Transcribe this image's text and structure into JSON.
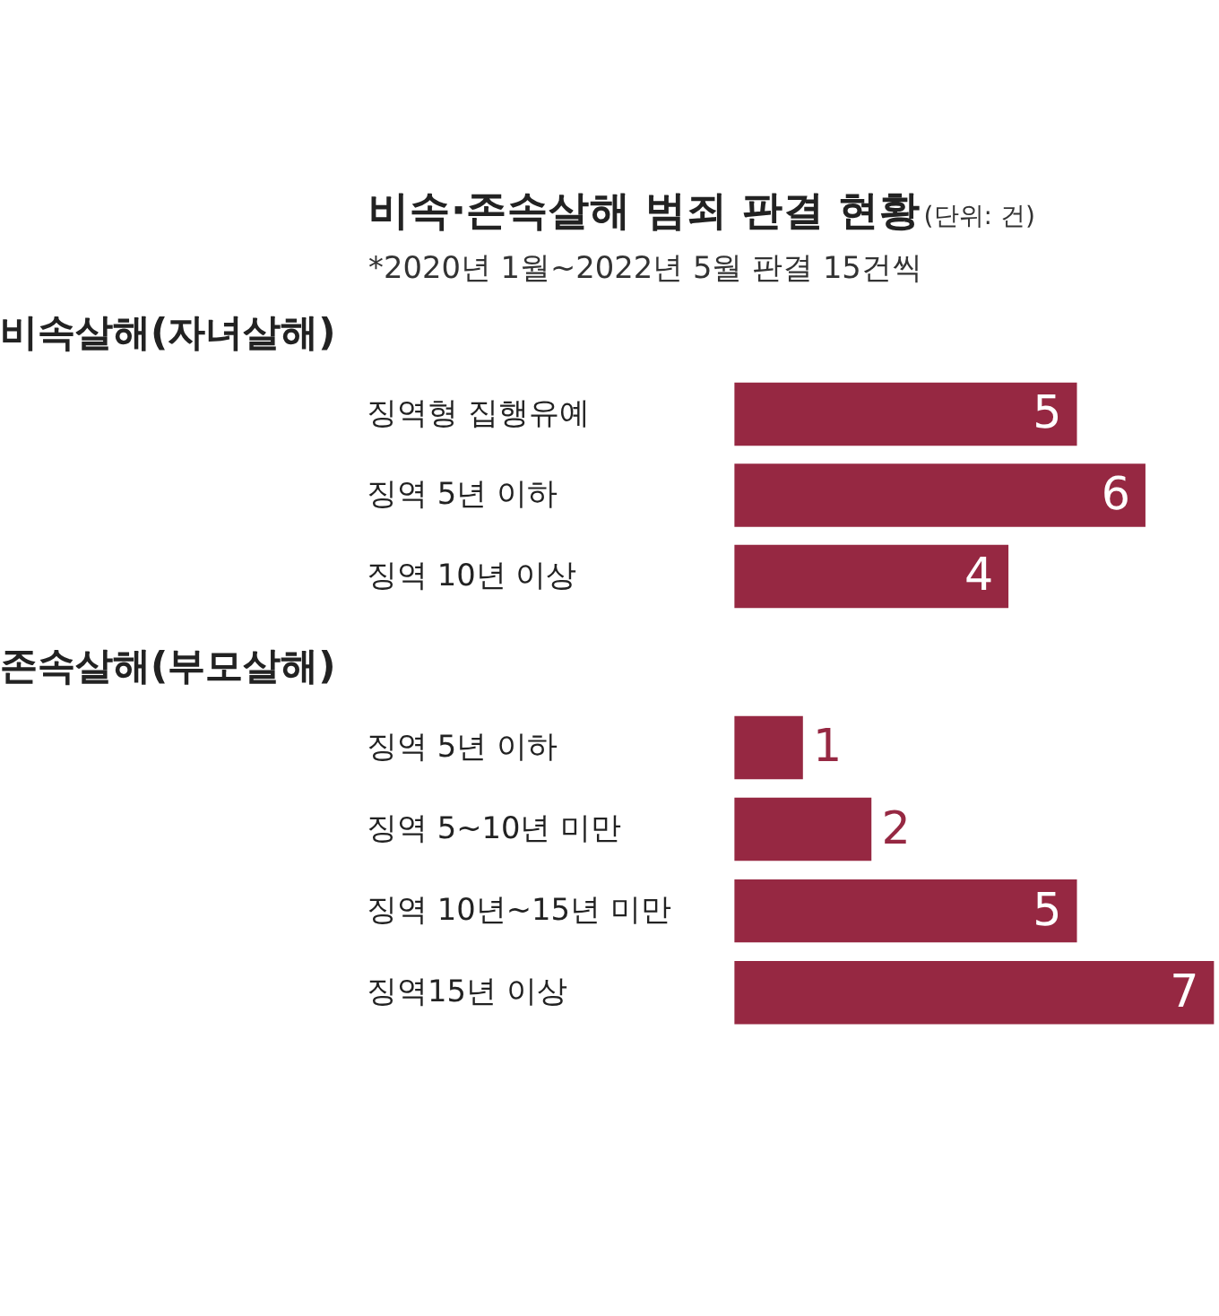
{
  "chart_data": [
    {
      "type": "bar",
      "orientation": "horizontal",
      "title": "비속살해(자녀살해)",
      "annotations": [
        "비속·존속살해 범죄 판결 현황",
        "(단위: 건)",
        "*2020년 1월~2022년 5월 판결 15건씩"
      ],
      "categories": [
        "징역형 집행유예",
        "징역 5년 이하",
        "징역 10년 이상"
      ],
      "values": [
        5,
        6,
        4
      ],
      "color": "#962842",
      "data_labels": true,
      "grid": false
    },
    {
      "type": "bar",
      "orientation": "horizontal",
      "title": "존속살해(부모살해)",
      "categories": [
        "징역 5년 이하",
        "징역 5~10년 미만",
        "징역 10년~15년 미만",
        "징역15년 이상"
      ],
      "values": [
        1,
        2,
        5,
        7
      ],
      "color": "#962842",
      "data_labels": true,
      "grid": false
    }
  ]
}
